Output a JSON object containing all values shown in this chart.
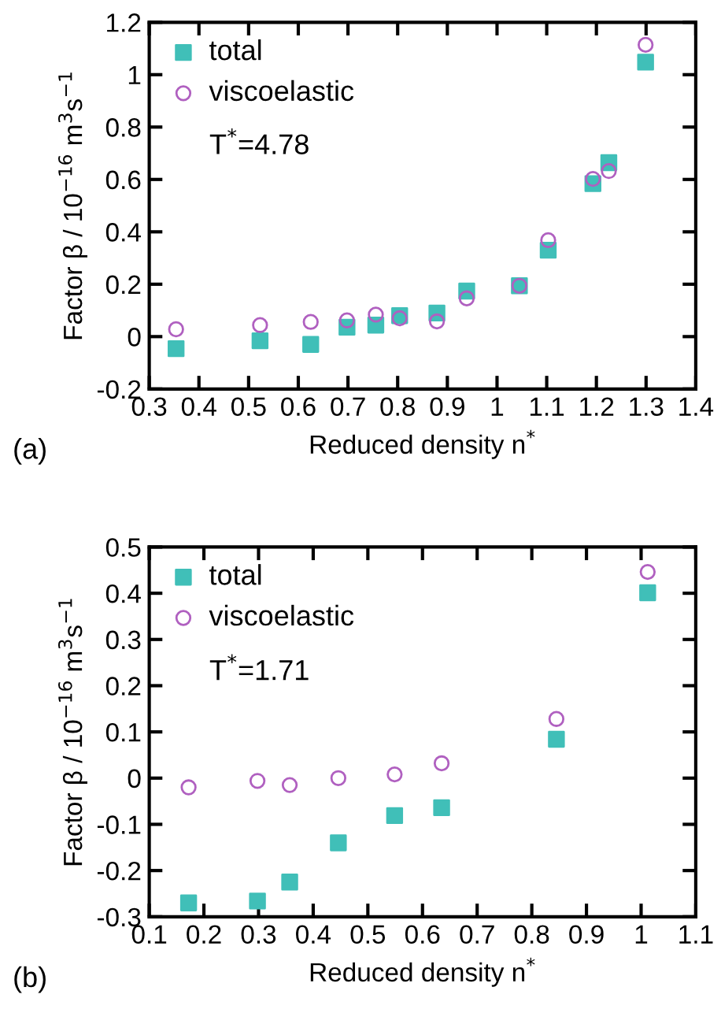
{
  "chart_data": [
    {
      "type": "scatter",
      "xlabel": "Reduced density n$^{*}$",
      "ylabel": "Factor β / 10$^{−16}$ m$^{3}$s$^{−1}$",
      "annotations": [
        "T$^{*}$=4.78",
        "(a)"
      ],
      "xlim": [
        0.3,
        1.4
      ],
      "xticks": [
        0.3,
        0.4,
        0.5,
        0.6,
        0.7,
        0.8,
        0.9,
        1,
        1.1,
        1.2,
        1.3,
        1.4
      ],
      "ylim": [
        -0.2,
        1.2
      ],
      "yticks": [
        -0.2,
        0,
        0.2,
        0.4,
        0.6,
        0.8,
        1,
        1.2
      ],
      "grid": false,
      "legend": "top left",
      "series": [
        {
          "name": "total",
          "color": "#40bfb8",
          "marker": "square",
          "x": [
            0.354,
            0.523,
            0.625,
            0.698,
            0.756,
            0.804,
            0.879,
            0.939,
            1.045,
            1.103,
            1.193,
            1.225,
            1.299
          ],
          "values": [
            -0.046,
            -0.016,
            -0.03,
            0.036,
            0.044,
            0.08,
            0.09,
            0.174,
            0.194,
            0.33,
            0.584,
            0.664,
            1.048
          ]
        },
        {
          "name": "viscoelastic",
          "color": "#b060c0",
          "marker": "circle",
          "x": [
            0.354,
            0.523,
            0.625,
            0.698,
            0.756,
            0.804,
            0.879,
            0.939,
            1.045,
            1.103,
            1.193,
            1.225,
            1.299
          ],
          "values": [
            0.028,
            0.044,
            0.056,
            0.062,
            0.084,
            0.07,
            0.058,
            0.146,
            0.194,
            0.368,
            0.602,
            0.632,
            1.114
          ]
        }
      ]
    },
    {
      "type": "scatter",
      "xlabel": "Reduced density n$^{*}$",
      "ylabel": "Factor β / 10$^{−16}$ m$^{3}$s$^{−1}$",
      "annotations": [
        "T$^{*}$=1.71",
        "(b)"
      ],
      "xlim": [
        0.1,
        1.1
      ],
      "xticks": [
        0.1,
        0.2,
        0.3,
        0.4,
        0.5,
        0.6,
        0.7,
        0.8,
        0.9,
        1,
        1.1
      ],
      "ylim": [
        -0.3,
        0.5
      ],
      "yticks": [
        -0.3,
        -0.2,
        -0.1,
        0,
        0.1,
        0.2,
        0.3,
        0.4,
        0.5
      ],
      "grid": false,
      "legend": "top left",
      "series": [
        {
          "name": "total",
          "color": "#40bfb8",
          "marker": "square",
          "x": [
            0.172,
            0.298,
            0.357,
            0.446,
            0.549,
            0.635,
            0.845,
            1.012
          ],
          "values": [
            -0.27,
            -0.266,
            -0.225,
            -0.14,
            -0.081,
            -0.064,
            0.084,
            0.401
          ]
        },
        {
          "name": "viscoelastic",
          "color": "#b060c0",
          "marker": "circle",
          "x": [
            0.172,
            0.298,
            0.357,
            0.446,
            0.549,
            0.635,
            0.845,
            1.012
          ],
          "values": [
            -0.02,
            -0.006,
            -0.015,
            0,
            0.008,
            0.032,
            0.128,
            0.446
          ]
        }
      ]
    }
  ]
}
